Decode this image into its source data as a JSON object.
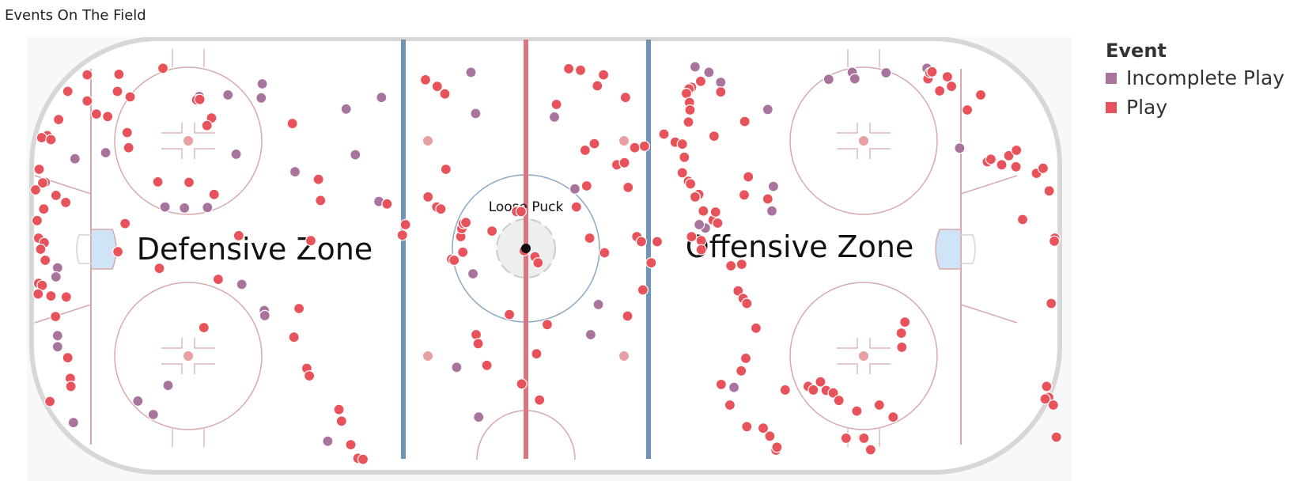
{
  "title": "Events On The Field",
  "legend": {
    "title": "Event",
    "items": [
      {
        "name": "Incomplete Play",
        "color": "#a8749d"
      },
      {
        "name": "Play",
        "color": "#e8525a"
      }
    ]
  },
  "rink_labels": {
    "defensive": "Defensive Zone",
    "offensive": "Offensive Zone",
    "center": "Loose Puck"
  },
  "colors": {
    "board": "#d7d7d7",
    "blue_line": "#6b94b8",
    "red_line": "#d97680",
    "circle": "#d6a9ad",
    "crease": "#cfe4f7"
  },
  "chart_data": {
    "type": "scatter",
    "title": "Events On The Field",
    "xlabel": "",
    "ylabel": "",
    "x_range": [
      0,
      200
    ],
    "y_range": [
      0,
      85
    ],
    "grid": false,
    "legend_position": "right",
    "series": [
      {
        "name": "Incomplete Play",
        "color": "#a8749d",
        "points": [
          [
            4.6,
            26.4
          ],
          [
            4.6,
            24.2
          ],
          [
            4.6,
            39.9
          ],
          [
            4.3,
            38.1
          ],
          [
            8.0,
            61.6
          ],
          [
            14.0,
            62.8
          ],
          [
            32.3,
            74.0
          ],
          [
            25.6,
            52.0
          ],
          [
            39.5,
            62.5
          ],
          [
            37.9,
            74.3
          ],
          [
            33.9,
            51.9
          ],
          [
            29.4,
            51.8
          ],
          [
            44.6,
            76.5
          ],
          [
            44.4,
            73.7
          ],
          [
            61.0,
            71.5
          ],
          [
            62.8,
            62.4
          ],
          [
            67.4,
            53.1
          ],
          [
            67.9,
            73.8
          ],
          [
            51.0,
            59.0
          ],
          [
            40.6,
            36.6
          ],
          [
            26.2,
            16.5
          ],
          [
            20.3,
            13.4
          ],
          [
            23.3,
            10.7
          ],
          [
            45.0,
            31.4
          ],
          [
            45.1,
            30.4
          ],
          [
            57.4,
            5.4
          ],
          [
            7.7,
            9.1
          ],
          [
            85.4,
            78.8
          ],
          [
            82.6,
            20.1
          ],
          [
            85.8,
            38.7
          ],
          [
            86.3,
            70.6
          ],
          [
            86.9,
            10.2
          ],
          [
            101.7,
            69.9
          ],
          [
            105.7,
            55.6
          ],
          [
            110.3,
            32.6
          ],
          [
            108.8,
            26.6
          ],
          [
            129.2,
            79.9
          ],
          [
            131.9,
            78.8
          ],
          [
            134.2,
            76.8
          ],
          [
            131.2,
            47.8
          ],
          [
            143.4,
            71.4
          ],
          [
            144.5,
            56.1
          ],
          [
            144.2,
            51.2
          ],
          [
            130.0,
            48.5
          ],
          [
            155.3,
            77.4
          ],
          [
            159.9,
            78.8
          ],
          [
            160.4,
            77.5
          ],
          [
            166.5,
            78.7
          ],
          [
            174.5,
            79.6
          ],
          [
            180.9,
            63.7
          ],
          [
            136.8,
            16.1
          ]
        ]
      },
      {
        "name": "Play",
        "color": "#e8525a",
        "points": [
          [
            10.4,
            78.3
          ],
          [
            6.6,
            75.0
          ],
          [
            10.4,
            73.1
          ],
          [
            12.2,
            70.5
          ],
          [
            4.8,
            69.4
          ],
          [
            2.6,
            66.2
          ],
          [
            1.5,
            65.8
          ],
          [
            3.3,
            65.4
          ],
          [
            1.0,
            59.5
          ],
          [
            2.2,
            56.9
          ],
          [
            1.7,
            56.8
          ],
          [
            0.3,
            55.4
          ],
          [
            4.3,
            54.3
          ],
          [
            6.2,
            52.9
          ],
          [
            1.9,
            51.6
          ],
          [
            0.6,
            49.3
          ],
          [
            0.9,
            45.8
          ],
          [
            2.0,
            44.9
          ],
          [
            1.3,
            43.6
          ],
          [
            2.2,
            41.4
          ],
          [
            0.9,
            36.8
          ],
          [
            1.6,
            36.4
          ],
          [
            0.8,
            34.7
          ],
          [
            3.3,
            34.3
          ],
          [
            6.3,
            34.1
          ],
          [
            4.2,
            30.2
          ],
          [
            6.6,
            22.0
          ],
          [
            7.1,
            17.9
          ],
          [
            7.2,
            16.3
          ],
          [
            3.1,
            13.3
          ],
          [
            16.6,
            78.4
          ],
          [
            25.2,
            79.6
          ],
          [
            16.3,
            75.0
          ],
          [
            18.8,
            73.9
          ],
          [
            14.4,
            70.0
          ],
          [
            18.2,
            66.8
          ],
          [
            18.5,
            63.8
          ],
          [
            31.8,
            73.3
          ],
          [
            32.4,
            73.4
          ],
          [
            34.7,
            69.7
          ],
          [
            33.8,
            68.2
          ],
          [
            24.2,
            57.0
          ],
          [
            30.3,
            56.9
          ],
          [
            35.2,
            54.5
          ],
          [
            17.8,
            48.7
          ],
          [
            16.4,
            43.1
          ],
          [
            24.5,
            39.8
          ],
          [
            33.2,
            28.0
          ],
          [
            40.0,
            46.3
          ],
          [
            36.0,
            37.6
          ],
          [
            50.5,
            68.6
          ],
          [
            55.6,
            57.5
          ],
          [
            56.0,
            53.3
          ],
          [
            54.1,
            45.3
          ],
          [
            51.8,
            31.8
          ],
          [
            50.8,
            26.1
          ],
          [
            53.3,
            19.9
          ],
          [
            53.8,
            18.4
          ],
          [
            59.6,
            11.7
          ],
          [
            60.1,
            9.4
          ],
          [
            61.9,
            4.7
          ],
          [
            63.3,
            2.0
          ],
          [
            64.3,
            1.8
          ],
          [
            76.5,
            77.3
          ],
          [
            78.8,
            76.0
          ],
          [
            80.3,
            74.5
          ],
          [
            77.0,
            54.0
          ],
          [
            78.7,
            52.0
          ],
          [
            79.5,
            51.6
          ],
          [
            72.6,
            48.5
          ],
          [
            72.0,
            46.4
          ],
          [
            69.0,
            52.6
          ],
          [
            80.5,
            59.5
          ],
          [
            83.8,
            43.0
          ],
          [
            81.6,
            41.6
          ],
          [
            82.1,
            41.4
          ],
          [
            83.4,
            46.1
          ],
          [
            83.6,
            47.7
          ],
          [
            83.9,
            48.7
          ],
          [
            84.4,
            48.9
          ],
          [
            89.5,
            47.2
          ],
          [
            94.3,
            51.1
          ],
          [
            95.2,
            51.1
          ],
          [
            95.8,
            43.3
          ],
          [
            97.9,
            42.1
          ],
          [
            98.5,
            40.9
          ],
          [
            86.4,
            26.6
          ],
          [
            86.8,
            24.8
          ],
          [
            88.5,
            20.5
          ],
          [
            95.3,
            16.8
          ],
          [
            100.3,
            28.6
          ],
          [
            92.9,
            30.6
          ],
          [
            98.2,
            22.8
          ],
          [
            98.8,
            13.6
          ],
          [
            102.1,
            72.4
          ],
          [
            104.5,
            79.5
          ],
          [
            110.1,
            76.1
          ],
          [
            106.8,
            79.2
          ],
          [
            115.6,
            73.8
          ],
          [
            111.3,
            78.3
          ],
          [
            107.7,
            63.3
          ],
          [
            109.5,
            64.6
          ],
          [
            113.9,
            60.4
          ],
          [
            108.0,
            56.2
          ],
          [
            106.0,
            52.0
          ],
          [
            108.6,
            45.8
          ],
          [
            111.5,
            42.9
          ],
          [
            117.8,
            46.1
          ],
          [
            118.7,
            45.1
          ],
          [
            119.0,
            35.5
          ],
          [
            120.6,
            40.9
          ],
          [
            121.8,
            45.1
          ],
          [
            116.0,
            30.3
          ],
          [
            117.4,
            63.8
          ],
          [
            115.4,
            60.8
          ],
          [
            116.1,
            55.9
          ],
          [
            119.3,
            64.1
          ],
          [
            123.1,
            66.5
          ],
          [
            125.3,
            64.9
          ],
          [
            127.1,
            61.9
          ],
          [
            127.9,
            57.1
          ],
          [
            128.3,
            56.6
          ],
          [
            130.3,
            77.0
          ],
          [
            128.5,
            75.8
          ],
          [
            128.0,
            75.5
          ],
          [
            127.5,
            74.6
          ],
          [
            128.1,
            72.8
          ],
          [
            128.2,
            71.3
          ],
          [
            127.9,
            68.9
          ],
          [
            126.7,
            64.5
          ],
          [
            126.7,
            58.8
          ],
          [
            128.5,
            46.1
          ],
          [
            130.8,
            51.2
          ],
          [
            129.9,
            54.5
          ],
          [
            129.2,
            54.0
          ],
          [
            130.4,
            45.3
          ],
          [
            130.4,
            43.5
          ],
          [
            132.7,
            49.4
          ],
          [
            133.6,
            48.8
          ],
          [
            133.2,
            51.0
          ],
          [
            132.9,
            66.1
          ],
          [
            134.2,
            74.9
          ],
          [
            138.9,
            69.0
          ],
          [
            139.6,
            58.0
          ],
          [
            138.8,
            54.4
          ],
          [
            143.4,
            53.6
          ],
          [
            138.3,
            40.6
          ],
          [
            136.2,
            40.3
          ],
          [
            137.6,
            35.3
          ],
          [
            138.6,
            33.8
          ],
          [
            139.3,
            32.8
          ],
          [
            141.1,
            27.9
          ],
          [
            139.1,
            21.9
          ],
          [
            138.2,
            19.4
          ],
          [
            134.3,
            16.7
          ],
          [
            136.0,
            12.6
          ],
          [
            139.3,
            8.3
          ],
          [
            142.5,
            8.0
          ],
          [
            143.8,
            6.4
          ],
          [
            145.0,
            3.6
          ],
          [
            145.2,
            4.2
          ],
          [
            146.8,
            15.6
          ],
          [
            151.3,
            16.3
          ],
          [
            152.3,
            15.6
          ],
          [
            153.7,
            17.2
          ],
          [
            154.8,
            15.5
          ],
          [
            156.2,
            15.0
          ],
          [
            157.3,
            13.5
          ],
          [
            158.7,
            6.0
          ],
          [
            160.8,
            11.4
          ],
          [
            162.0,
            6.1
          ],
          [
            162.2,
            6.0
          ],
          [
            163.5,
            3.7
          ],
          [
            165.2,
            12.6
          ],
          [
            167.9,
            10.2
          ],
          [
            169.6,
            24.1
          ],
          [
            169.5,
            26.9
          ],
          [
            170.2,
            29.1
          ],
          [
            174.7,
            77.5
          ],
          [
            175.1,
            78.7
          ],
          [
            175.5,
            78.9
          ],
          [
            177.0,
            75.1
          ],
          [
            178.5,
            77.9
          ],
          [
            179.3,
            76.0
          ],
          [
            182.4,
            71.3
          ],
          [
            185.0,
            74.3
          ],
          [
            186.3,
            61.0
          ],
          [
            187.0,
            61.5
          ],
          [
            189.1,
            60.4
          ],
          [
            190.5,
            62.2
          ],
          [
            191.9,
            60.0
          ],
          [
            192.0,
            63.3
          ],
          [
            193.2,
            49.5
          ],
          [
            195.9,
            58.7
          ],
          [
            197.2,
            59.7
          ],
          [
            198.4,
            55.2
          ],
          [
            199.5,
            45.8
          ],
          [
            199.4,
            45.2
          ],
          [
            198.8,
            32.8
          ],
          [
            197.9,
            16.3
          ],
          [
            198.3,
            14.1
          ],
          [
            197.6,
            13.8
          ],
          [
            199.2,
            12.6
          ],
          [
            199.8,
            6.2
          ]
        ]
      }
    ]
  }
}
